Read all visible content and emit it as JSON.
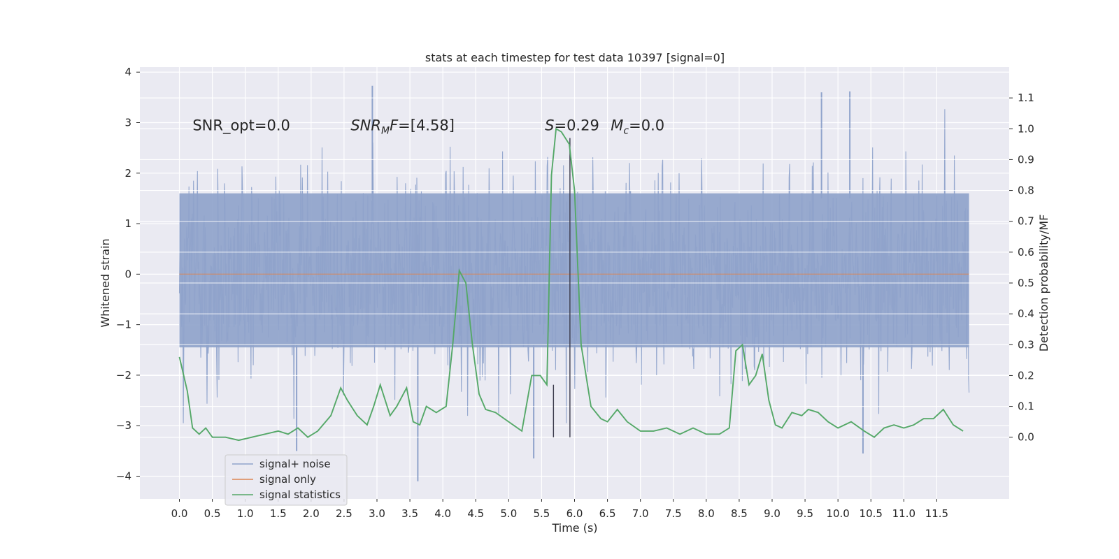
{
  "chart_data": {
    "type": "line",
    "title": "stats at each timestep for test data 10397 [signal=0]",
    "xlabel": "Time (s)",
    "ylabel_left": "Whitened strain",
    "ylabel_right": "Detection probability/MF",
    "xlim": [
      -0.6,
      12.6
    ],
    "ylim_left": [
      -4.45,
      4.1
    ],
    "ylim_right": [
      -0.2,
      1.2
    ],
    "x_ticks": [
      0.0,
      0.5,
      1.0,
      1.5,
      2.0,
      2.5,
      3.0,
      3.5,
      4.0,
      4.5,
      5.0,
      5.5,
      6.0,
      6.5,
      7.0,
      7.5,
      8.0,
      8.5,
      9.0,
      9.5,
      10.0,
      10.5,
      11.0,
      11.5
    ],
    "x_tick_labels": [
      "0.0",
      "0.5",
      "1.0",
      "1.5",
      "2.0",
      "2.5",
      "3.0",
      "3.5",
      "4.0",
      "4.5",
      "5.0",
      "5.5",
      "6.0",
      "6.5",
      "7.0",
      "7.5",
      "8.0",
      "8.5",
      "9.0",
      "9.5",
      "10.0",
      "10.5",
      "11.0",
      "11.5"
    ],
    "y_left_ticks": [
      -4,
      -3,
      -2,
      -1,
      0,
      1,
      2,
      3,
      4
    ],
    "y_left_tick_labels": [
      "−4",
      "−3",
      "−2",
      "−1",
      "0",
      "1",
      "2",
      "3",
      "4"
    ],
    "y_right_ticks": [
      0.0,
      0.1,
      0.2,
      0.3,
      0.4,
      0.5,
      0.6,
      0.7,
      0.8,
      0.9,
      1.0,
      1.1
    ],
    "y_right_tick_labels": [
      "0.0",
      "0.1",
      "0.2",
      "0.3",
      "0.4",
      "0.5",
      "0.6",
      "0.7",
      "0.8",
      "0.9",
      "1.0",
      "1.1"
    ],
    "grid": true,
    "legend_position": "lower-left",
    "annotations": [
      {
        "id": "snr-opt",
        "prefix": "SNR_opt=0.0",
        "sub": "",
        "suffix": "",
        "italic": false,
        "x": 0.2,
        "y": 2.85
      },
      {
        "id": "snr-mf",
        "prefix": "SNR",
        "sub": "M",
        "suffix": "F=[4.58]",
        "italic": true,
        "x": 2.6,
        "y": 2.85
      },
      {
        "id": "stat-s",
        "prefix": "S",
        "sub": "",
        "suffix": "=0.29",
        "italic": true,
        "x": 5.55,
        "y": 2.85
      },
      {
        "id": "chirp-mass",
        "prefix": "M",
        "sub": "c",
        "suffix": "=0.0",
        "italic": true,
        "x": 6.55,
        "y": 2.85
      }
    ],
    "markers": [
      {
        "x": 5.68,
        "y_right": [
          0.0,
          0.17
        ]
      },
      {
        "x": 5.93,
        "y_right": [
          0.0,
          0.97
        ]
      }
    ],
    "series": [
      {
        "name": "signal+ noise",
        "axis": "left",
        "style": "noise-band",
        "color": "#8fa3cb",
        "x_range": [
          0.0,
          11.99
        ],
        "approx_envelope": [
          -2.2,
          2.3
        ],
        "notable_peaks_x": [
          2.93,
          10.18,
          9.75
        ],
        "notable_peaks_y": [
          3.73,
          3.62,
          3.6
        ],
        "notable_troughs_x": [
          3.62,
          5.38,
          1.78,
          10.38
        ],
        "notable_troughs_y": [
          -4.1,
          -3.65,
          -3.5,
          -3.55
        ]
      },
      {
        "name": "signal only",
        "axis": "left",
        "color": "#dd8452",
        "x": [
          0.0,
          11.99
        ],
        "y": [
          0.0,
          0.0
        ]
      },
      {
        "name": "signal statistics",
        "axis": "right",
        "color": "#55a868",
        "x": [
          0.0,
          0.12,
          0.2,
          0.3,
          0.4,
          0.5,
          0.7,
          0.9,
          1.1,
          1.3,
          1.5,
          1.65,
          1.8,
          1.95,
          2.1,
          2.3,
          2.45,
          2.55,
          2.7,
          2.85,
          2.95,
          3.05,
          3.2,
          3.3,
          3.45,
          3.55,
          3.65,
          3.75,
          3.9,
          4.05,
          4.15,
          4.25,
          4.35,
          4.45,
          4.55,
          4.65,
          4.8,
          5.0,
          5.2,
          5.35,
          5.48,
          5.58,
          5.65,
          5.72,
          5.8,
          5.92,
          6.0,
          6.1,
          6.25,
          6.4,
          6.5,
          6.65,
          6.8,
          7.0,
          7.2,
          7.4,
          7.6,
          7.8,
          8.0,
          8.2,
          8.35,
          8.45,
          8.55,
          8.65,
          8.75,
          8.85,
          8.95,
          9.05,
          9.15,
          9.3,
          9.45,
          9.55,
          9.7,
          9.85,
          10.0,
          10.2,
          10.4,
          10.55,
          10.7,
          10.85,
          11.0,
          11.15,
          11.3,
          11.45,
          11.6,
          11.75,
          11.9
        ],
        "y": [
          0.26,
          0.15,
          0.03,
          0.01,
          0.03,
          0.0,
          0.0,
          -0.01,
          0.0,
          0.01,
          0.02,
          0.01,
          0.03,
          0.0,
          0.02,
          0.07,
          0.16,
          0.12,
          0.07,
          0.04,
          0.1,
          0.17,
          0.07,
          0.1,
          0.16,
          0.05,
          0.04,
          0.1,
          0.08,
          0.1,
          0.3,
          0.54,
          0.5,
          0.3,
          0.14,
          0.09,
          0.08,
          0.05,
          0.02,
          0.2,
          0.2,
          0.17,
          0.85,
          1.0,
          0.99,
          0.95,
          0.8,
          0.3,
          0.1,
          0.06,
          0.05,
          0.09,
          0.05,
          0.02,
          0.02,
          0.03,
          0.01,
          0.03,
          0.01,
          0.01,
          0.03,
          0.28,
          0.3,
          0.17,
          0.2,
          0.27,
          0.12,
          0.04,
          0.03,
          0.08,
          0.07,
          0.09,
          0.08,
          0.05,
          0.03,
          0.05,
          0.02,
          0.0,
          0.03,
          0.04,
          0.03,
          0.04,
          0.06,
          0.06,
          0.09,
          0.04,
          0.02
        ]
      }
    ]
  }
}
